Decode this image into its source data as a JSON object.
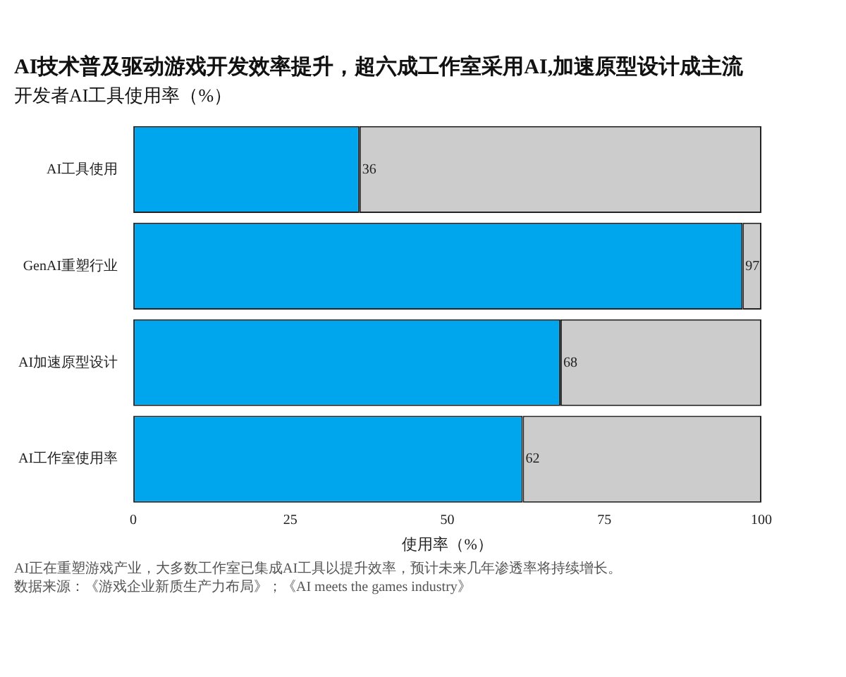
{
  "chart_data": {
    "type": "bar",
    "orientation": "horizontal",
    "stacked": true,
    "title": "AI技术普及驱动游戏开发效率提升，超六成工作室采用AI,加速原型设计成主流",
    "subtitle": "开发者AI工具使用率（%）",
    "xlabel": "使用率（%）",
    "categories": [
      "AI工具使用",
      "GenAI重塑行业",
      "AI加速原型设计",
      "AI工作室使用率"
    ],
    "series": [
      {
        "color": "#00a6ed",
        "values": [
          36,
          97,
          68,
          62
        ],
        "value_labels": [
          "36",
          "97",
          "68",
          "62"
        ]
      },
      {
        "color": "#cccccc",
        "values": [
          64,
          3,
          32,
          38
        ]
      }
    ],
    "xlim": [
      0,
      100
    ],
    "xticks": [
      0,
      25,
      50,
      75,
      100
    ],
    "grid": false,
    "legend": false,
    "annotations": [
      "AI正在重塑游戏产业，大多数工作室已集成AI工具以提升效率，预计未来几年渗透率将持续增长。",
      "数据来源：《游戏企业新质生产力布局》；《AI meets the games industry》"
    ]
  }
}
